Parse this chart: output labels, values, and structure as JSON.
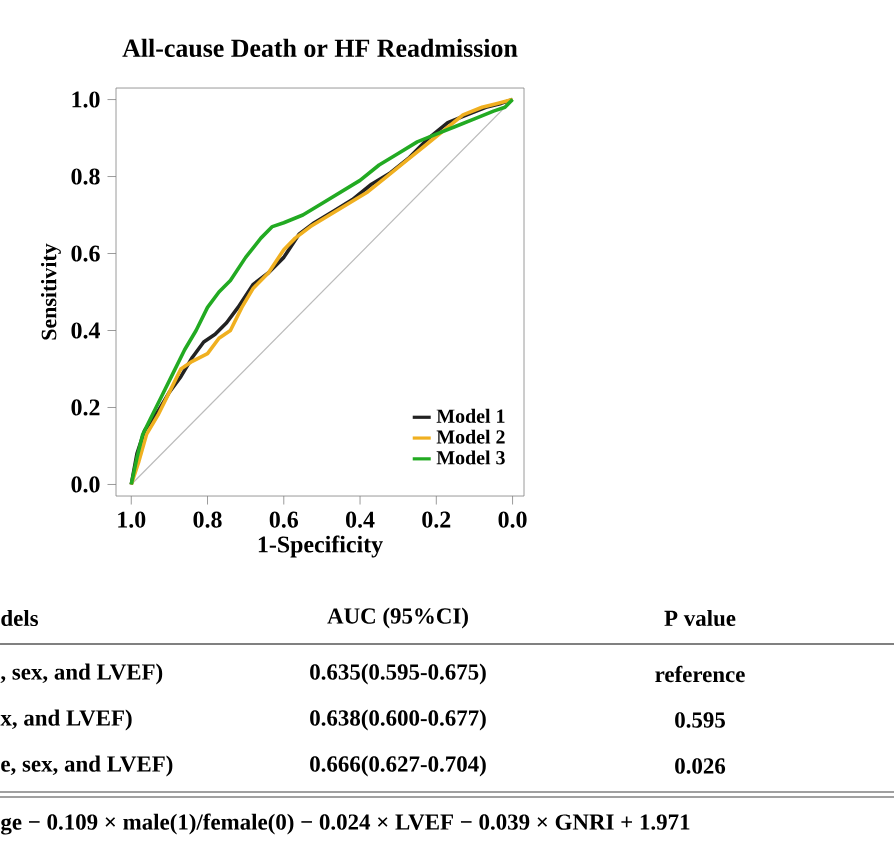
{
  "chart_data": {
    "type": "line",
    "title": "All-cause Death or HF Readmission",
    "xlabel": "1-Specificity",
    "ylabel": "Sensitivity",
    "xlim": [
      1.04,
      -0.03
    ],
    "ylim": [
      -0.03,
      1.03
    ],
    "xticks": [
      {
        "value": 1.0,
        "label": "1.0"
      },
      {
        "value": 0.8,
        "label": "0.8"
      },
      {
        "value": 0.6,
        "label": "0.6"
      },
      {
        "value": 0.4,
        "label": "0.4"
      },
      {
        "value": 0.2,
        "label": "0.2"
      },
      {
        "value": 0.0,
        "label": "0.0"
      }
    ],
    "yticks": [
      {
        "value": 0.0,
        "label": "0.0"
      },
      {
        "value": 0.2,
        "label": "0.2"
      },
      {
        "value": 0.4,
        "label": "0.4"
      },
      {
        "value": 0.6,
        "label": "0.6"
      },
      {
        "value": 0.8,
        "label": "0.8"
      },
      {
        "value": 1.0,
        "label": "1.0"
      }
    ],
    "grid": false,
    "legend": "bottom right",
    "marker": "none",
    "line_style": "solid",
    "series": [
      {
        "name": "Model 1",
        "color": "#222222",
        "x": [
          1,
          0.985,
          0.965,
          0.93,
          0.9,
          0.87,
          0.84,
          0.81,
          0.78,
          0.75,
          0.72,
          0.68,
          0.64,
          0.6,
          0.56,
          0.52,
          0.47,
          0.42,
          0.37,
          0.32,
          0.27,
          0.22,
          0.17,
          0.12,
          0.07,
          0.03,
          0
        ],
        "values": [
          0,
          0.08,
          0.14,
          0.19,
          0.24,
          0.28,
          0.33,
          0.37,
          0.39,
          0.42,
          0.46,
          0.52,
          0.55,
          0.59,
          0.65,
          0.68,
          0.71,
          0.74,
          0.78,
          0.81,
          0.85,
          0.9,
          0.94,
          0.96,
          0.98,
          0.99,
          1
        ]
      },
      {
        "name": "Model 2",
        "color": "#f0b020",
        "x": [
          1,
          0.98,
          0.96,
          0.93,
          0.9,
          0.87,
          0.84,
          0.8,
          0.77,
          0.74,
          0.71,
          0.68,
          0.64,
          0.6,
          0.57,
          0.53,
          0.48,
          0.43,
          0.38,
          0.33,
          0.28,
          0.23,
          0.18,
          0.13,
          0.08,
          0.04,
          0
        ],
        "values": [
          0,
          0.06,
          0.13,
          0.18,
          0.24,
          0.3,
          0.32,
          0.34,
          0.38,
          0.4,
          0.46,
          0.51,
          0.55,
          0.61,
          0.64,
          0.67,
          0.7,
          0.73,
          0.76,
          0.8,
          0.84,
          0.88,
          0.92,
          0.96,
          0.98,
          0.99,
          1
        ]
      },
      {
        "name": "Model 3",
        "color": "#22aa22",
        "x": [
          1,
          0.985,
          0.97,
          0.95,
          0.92,
          0.89,
          0.86,
          0.83,
          0.8,
          0.77,
          0.74,
          0.7,
          0.66,
          0.63,
          0.6,
          0.55,
          0.5,
          0.45,
          0.4,
          0.35,
          0.3,
          0.25,
          0.2,
          0.15,
          0.1,
          0.05,
          0.02,
          0
        ],
        "values": [
          0,
          0.07,
          0.13,
          0.17,
          0.23,
          0.29,
          0.35,
          0.4,
          0.46,
          0.5,
          0.53,
          0.59,
          0.64,
          0.67,
          0.68,
          0.7,
          0.73,
          0.76,
          0.79,
          0.83,
          0.86,
          0.89,
          0.91,
          0.93,
          0.95,
          0.97,
          0.98,
          1
        ]
      },
      {
        "color": "#bbbbbb",
        "x": [
          1,
          0
        ],
        "values": [
          0,
          1
        ]
      }
    ],
    "annotations": [
      "dels",
      "AUC (95%CI)",
      "P value",
      ", sex, and LVEF)",
      "0.635(0.595-0.675)",
      "reference",
      "x, and LVEF)",
      "0.638(0.600-0.677)",
      "0.595",
      "e, sex, and LVEF)",
      "0.666(0.627-0.704)",
      "0.026",
      "ge − 0.109 × male(1)/female(0) − 0.024 × LVEF − 0.039 × GNRI + 1.971"
    ]
  }
}
